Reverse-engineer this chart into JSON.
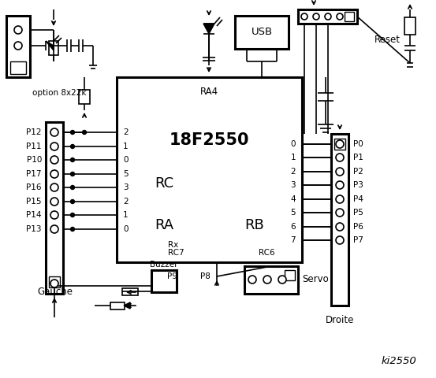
{
  "bg_color": "#ffffff",
  "chip_label": "18F2550",
  "chip_sublabel": "RA4",
  "rc_label": "RC",
  "ra_label": "RA",
  "rb_label": "RB",
  "rc_pins": [
    "2",
    "1",
    "0",
    "5",
    "3",
    "2",
    "1",
    "0"
  ],
  "rb_pins": [
    "0",
    "1",
    "2",
    "3",
    "4",
    "5",
    "6",
    "7"
  ],
  "left_labels": [
    "P12",
    "P11",
    "P10",
    "P17",
    "P16",
    "P15",
    "P14",
    "P13"
  ],
  "right_labels": [
    "P0",
    "P1",
    "P2",
    "P3",
    "P4",
    "P5",
    "P6",
    "P7"
  ],
  "option_label": "option 8x22k",
  "rx_label": "Rx",
  "rc7_label": "RC7",
  "rc6_label": "RC6",
  "usb_label": "USB",
  "reset_label": "Reset",
  "gauche_label": "Gauche",
  "buzzer_label": "Buzzer",
  "p9_label": "P9",
  "p8_label": "P8",
  "servo_label": "Servo",
  "droite_label": "Droite",
  "title": "ki2550"
}
